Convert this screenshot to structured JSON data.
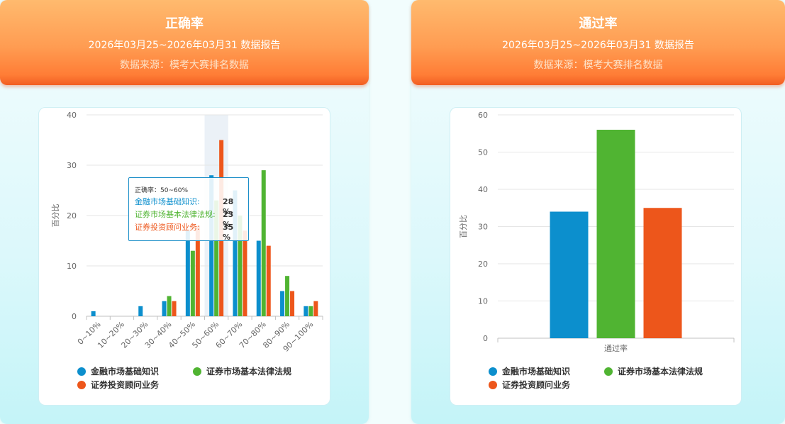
{
  "panels": [
    {
      "title": "正确率",
      "subtitle": "2026年03月25~2026年03月31 数据报告",
      "source": "数据来源：模考大赛排名数据"
    },
    {
      "title": "通过率",
      "subtitle": "2026年03月25~2026年03月31 数据报告",
      "source": "数据来源：模考大赛排名数据"
    }
  ],
  "colors": {
    "blue": "#0c8fcd",
    "green": "#50b432",
    "orange": "#ed561b"
  },
  "tooltip": {
    "title": "正确率：50~60%",
    "rows": [
      {
        "label": "金融市场基础知识:",
        "value": "28 %"
      },
      {
        "label": "证券市场基本法律法规:",
        "value": "23 %"
      },
      {
        "label": "证券投资顾问业务:",
        "value": "35 %"
      }
    ]
  },
  "chart_data": [
    {
      "type": "bar",
      "ylabel": "百分比",
      "ylim": [
        0,
        40
      ],
      "yticks": [
        "0",
        "10",
        "20",
        "30",
        "40"
      ],
      "categories": [
        "0~10%",
        "10~20%",
        "20~30%",
        "30~40%",
        "40~50%",
        "50~60%",
        "60~70%",
        "70~80%",
        "80~90%",
        "90~100%"
      ],
      "series": [
        {
          "name": "金融市场基础知识",
          "values": [
            1,
            0,
            2,
            3,
            17,
            28,
            25,
            15,
            5,
            2
          ]
        },
        {
          "name": "证券市场基本法律法规",
          "values": [
            0,
            0,
            0,
            4,
            13,
            23,
            20,
            29,
            8,
            2
          ]
        },
        {
          "name": "证券投资顾问业务",
          "values": [
            0,
            0,
            0,
            3,
            18,
            35,
            17,
            14,
            5,
            3
          ]
        }
      ],
      "highlight_category": "50~60%",
      "legend": "bottom"
    },
    {
      "type": "bar",
      "ylabel": "百分比",
      "xlabel": "通过率",
      "ylim": [
        0,
        60
      ],
      "yticks": [
        "0",
        "10",
        "20",
        "30",
        "40",
        "50",
        "60"
      ],
      "categories": [
        "通过率"
      ],
      "series": [
        {
          "name": "金融市场基础知识",
          "values": [
            34
          ]
        },
        {
          "name": "证券市场基本法律法规",
          "values": [
            56
          ]
        },
        {
          "name": "证券投资顾问业务",
          "values": [
            35
          ]
        }
      ],
      "legend": "bottom"
    }
  ]
}
